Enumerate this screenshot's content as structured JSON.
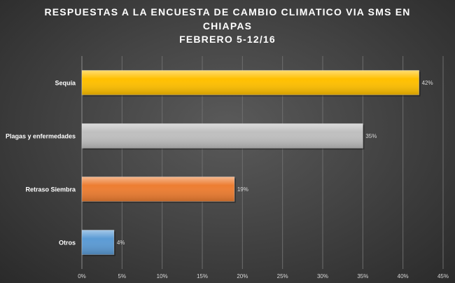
{
  "chart_data": {
    "type": "bar",
    "orientation": "horizontal",
    "title_lines": [
      "RESPUESTAS A LA ENCUESTA DE CAMBIO CLIMATICO VIA SMS EN",
      "CHIAPAS",
      "FEBRERO 5-12/16"
    ],
    "categories": [
      "Sequía",
      "Plagas y enfermedades",
      "Retraso Siembra",
      "Otros"
    ],
    "values": [
      42,
      35,
      19,
      4
    ],
    "value_labels": [
      "42%",
      "35%",
      "19%",
      "4%"
    ],
    "bar_colors": [
      "#ffc000",
      "#bfbfbf",
      "#ed7d31",
      "#5b9bd5"
    ],
    "xlim": [
      0,
      45
    ],
    "x_ticks": [
      0,
      5,
      10,
      15,
      20,
      25,
      30,
      35,
      40,
      45
    ],
    "x_tick_labels": [
      "0%",
      "5%",
      "10%",
      "15%",
      "20%",
      "25%",
      "30%",
      "35%",
      "40%",
      "45%"
    ],
    "grid": true,
    "legend": "none"
  }
}
